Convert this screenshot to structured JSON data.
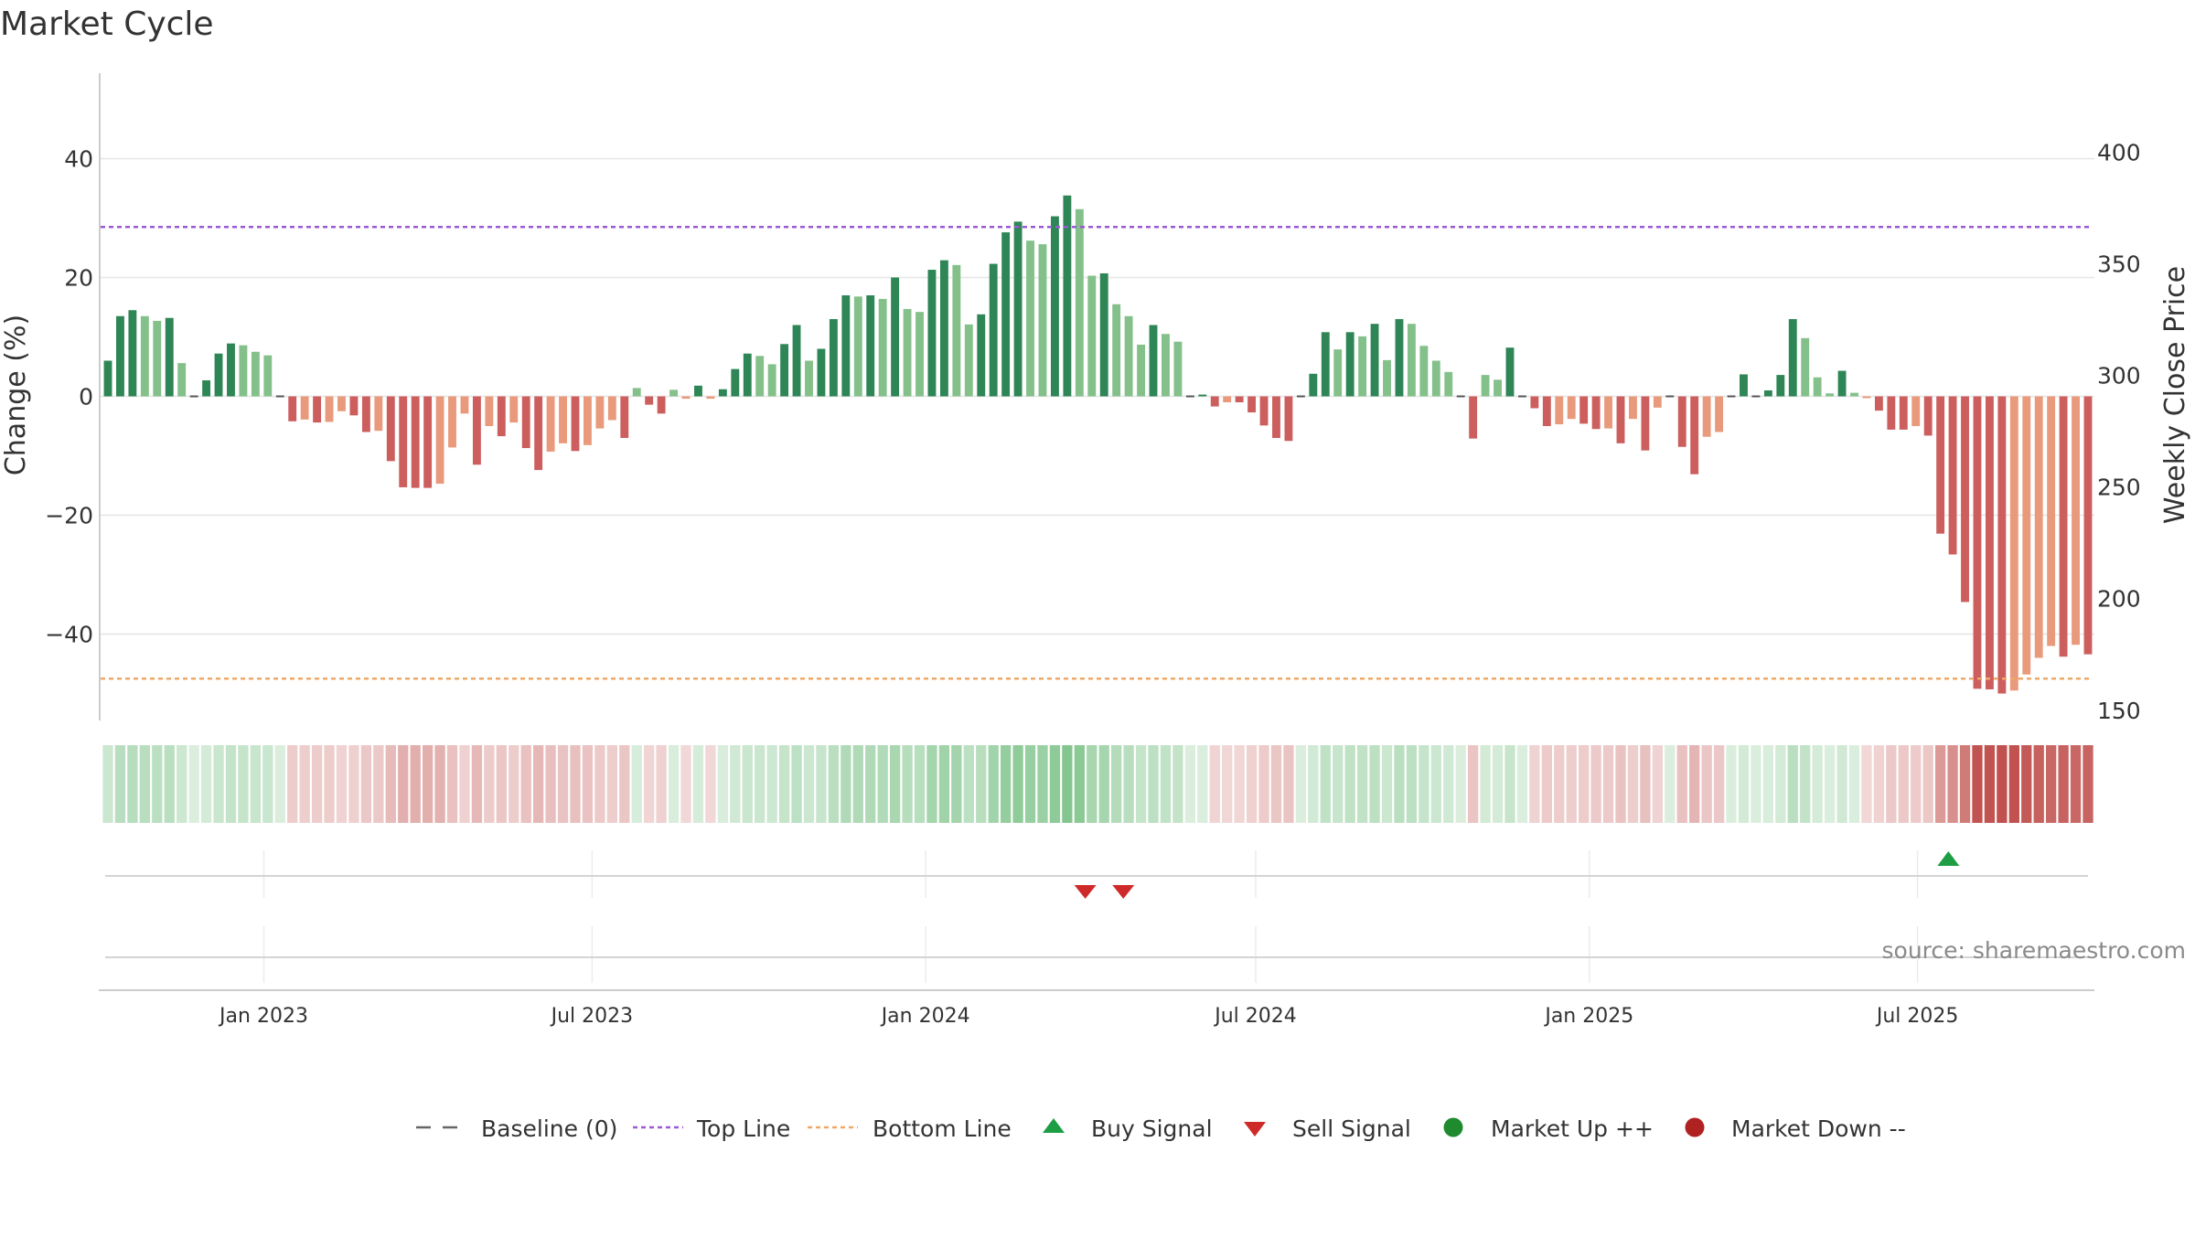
{
  "chart_data": {
    "type": "bar",
    "title": "Market Cycle",
    "ylabel": "Change (%)",
    "ylabel_right": "Weekly Close Price",
    "ylim": [
      -54,
      54
    ],
    "ylim_right": [
      145,
      435
    ],
    "yticks": [
      40,
      20,
      0,
      -20,
      -40
    ],
    "yticks_labels": [
      "40",
      "20",
      "0",
      "−20",
      "−40"
    ],
    "yticks_right": [
      400,
      350,
      300,
      250,
      200,
      150
    ],
    "x_start": "2022-10-07",
    "x_end": "2025-10-03",
    "x_tick_dates": [
      "2023-01-01",
      "2023-07-01",
      "2024-01-01",
      "2024-07-01",
      "2025-01-01",
      "2025-07-01"
    ],
    "x_tick_labels": [
      "Jan 2023",
      "Jul 2023",
      "Jan 2024",
      "Jul 2024",
      "Jan 2025",
      "Jul 2025"
    ],
    "source": "source: sharemaestro.com",
    "grid": true,
    "colors": {
      "up_strong": "#2e8555",
      "up_light": "#84c08a",
      "down_strong": "#cc5e5e",
      "down_light": "#e99a7c",
      "top_line": "#9b59d6",
      "bottom_line": "#f0a868",
      "buy": "#1e9e44",
      "sell": "#cf2a2a",
      "market_up": "#1f8a2e",
      "market_down": "#b02222",
      "baseline": "#666666"
    },
    "top_line": 28.5,
    "bottom_line": -47.5,
    "series": [
      {
        "name": "Change (%)",
        "values": [
          6,
          13.5,
          14.5,
          13.5,
          12.7,
          13.2,
          5.6,
          0,
          2.7,
          7.2,
          8.9,
          8.6,
          7.5,
          6.9,
          0,
          -4.2,
          -3.9,
          -4.4,
          -4.3,
          -2.5,
          -3.2,
          -6,
          -5.8,
          -10.9,
          -15.3,
          -15.4,
          -15.4,
          -14.7,
          -8.6,
          -2.9,
          -11.5,
          -5,
          -6.7,
          -4.4,
          -8.7,
          -12.4,
          -9.3,
          -7.9,
          -9.2,
          -8.2,
          -5.4,
          -4,
          -7,
          1.4,
          -1.4,
          -2.9,
          1.1,
          -0.4,
          1.8,
          -0.4,
          1.2,
          4.6,
          7.2,
          6.8,
          5.4,
          8.8,
          12,
          6,
          8,
          13,
          17,
          16.8,
          17,
          16.4,
          20,
          14.7,
          14.2,
          21.3,
          22.9,
          22.1,
          12.1,
          13.8,
          22.3,
          27.6,
          29.4,
          26.2,
          25.6,
          30.3,
          33.8,
          31.5,
          20.3,
          20.7,
          15.5,
          13.5,
          8.7,
          12,
          10.5,
          9.2,
          0,
          0.3,
          -1.7,
          -1,
          -1,
          -2.7,
          -4.9,
          -7,
          -7.5,
          0,
          3.8,
          10.8,
          7.9,
          10.8,
          10.1,
          12.2,
          6.1,
          13,
          12.2,
          8.5,
          6,
          4.1,
          0,
          -7.1,
          3.6,
          2.8,
          8.2,
          0,
          -2,
          -5,
          -4.7,
          -3.8,
          -4.6,
          -5.5,
          -5.4,
          -7.9,
          -3.8,
          -9.1,
          -1.9,
          0,
          -8.5,
          -13.1,
          -6.8,
          -6,
          0,
          3.7,
          0,
          1,
          3.6,
          13,
          9.8,
          3.2,
          0.5,
          4.3,
          0.6,
          -0.3,
          -2.4,
          -5.6,
          -5.6,
          -5,
          -6.6,
          -23.1,
          -26.6,
          -34.6,
          -49.2,
          -49.3,
          -50,
          -49.5,
          -46.8,
          -44,
          -42,
          -43.8,
          -41.8,
          -43.4
        ]
      }
    ],
    "signals": [
      {
        "type": "Sell Signal",
        "date": "2024-03-29"
      },
      {
        "type": "Sell Signal",
        "date": "2024-04-19"
      },
      {
        "type": "Buy Signal",
        "date": "2025-07-18"
      }
    ],
    "legend": {
      "position": "bottom-center",
      "items": [
        {
          "label": "Baseline (0)",
          "marker": "dash"
        },
        {
          "label": "Top Line",
          "marker": "dotted-purple"
        },
        {
          "label": "Bottom Line",
          "marker": "dotted-orange"
        },
        {
          "label": "Buy Signal",
          "marker": "triangle-up-green"
        },
        {
          "label": "Sell Signal",
          "marker": "triangle-down-red"
        },
        {
          "label": "Market Up ++",
          "marker": "circle-green"
        },
        {
          "label": "Market Down --",
          "marker": "circle-red"
        }
      ]
    }
  }
}
